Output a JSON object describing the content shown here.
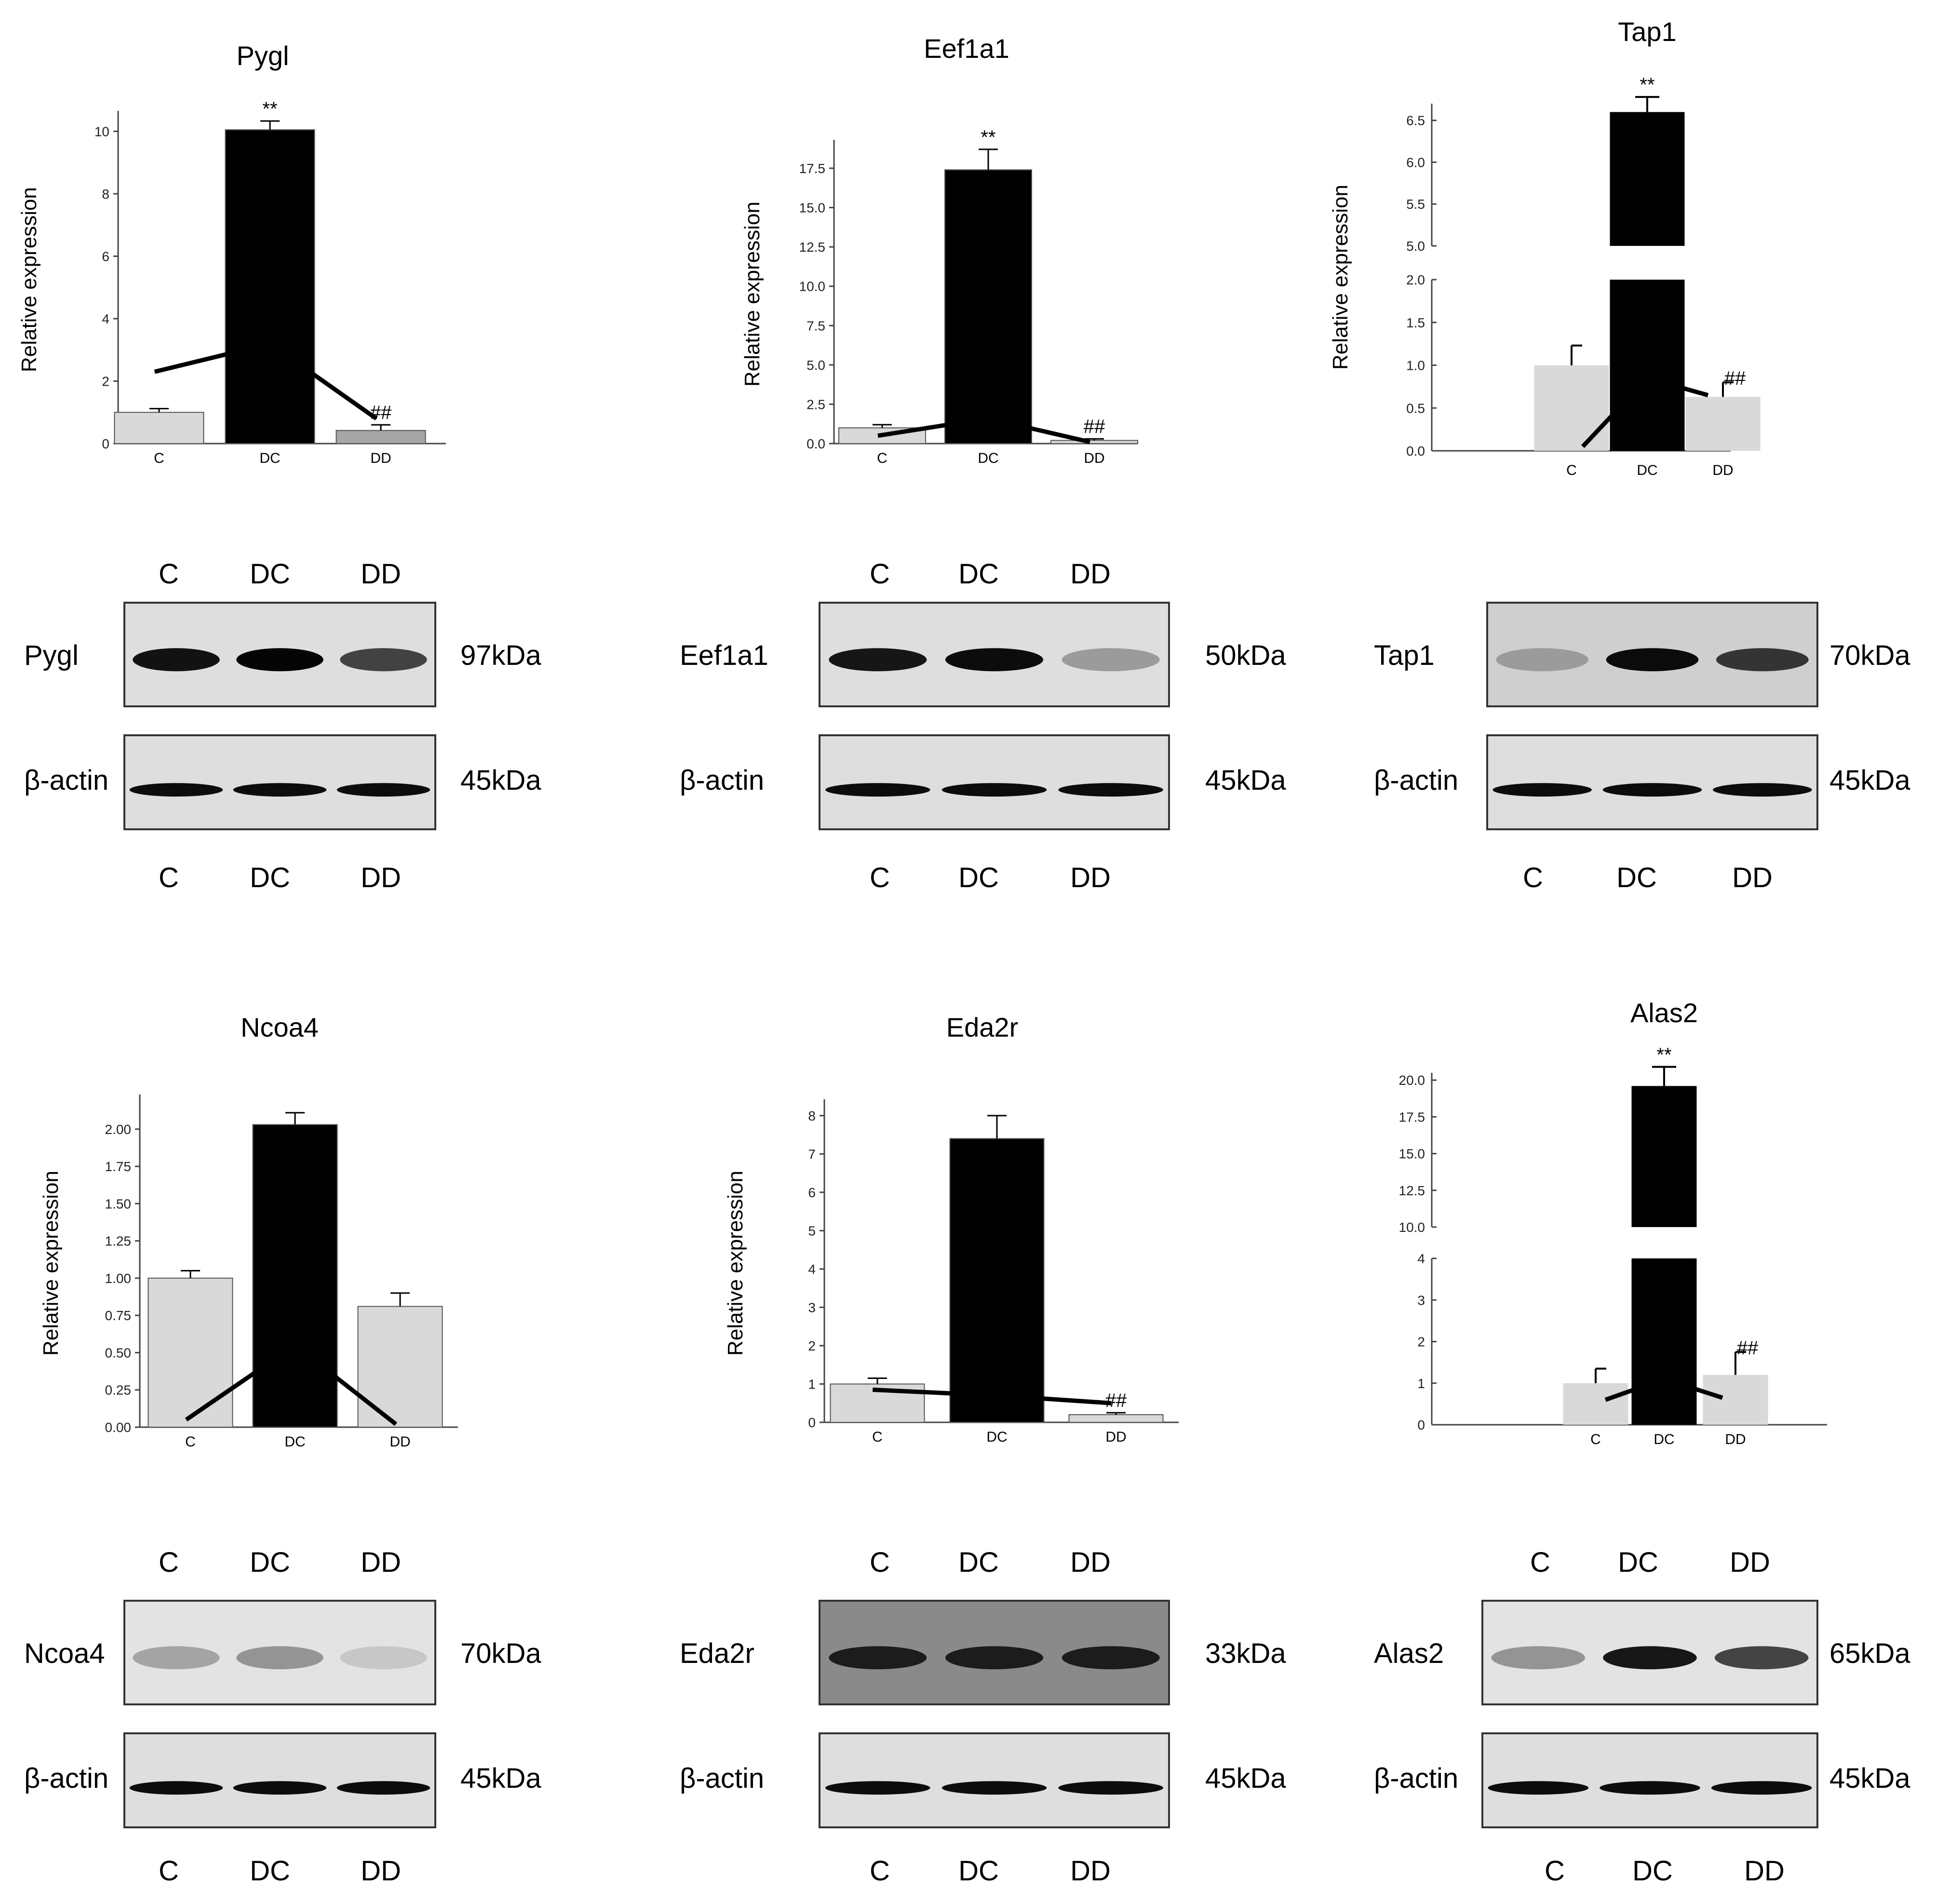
{
  "chart_data": [
    {
      "type": "bar",
      "title": "Pygl",
      "ylabel": "Relative expression",
      "categories": [
        "C",
        "DC",
        "DD"
      ],
      "values": [
        1.0,
        10.05,
        0.42
      ],
      "errors": [
        0.12,
        0.28,
        0.18
      ],
      "colors": [
        "#d9d9d9",
        "#000000",
        "#a6a6a6"
      ],
      "ylim": [
        0,
        10.5
      ],
      "yticks": [
        0,
        2,
        4,
        6,
        8,
        10
      ],
      "annotations": [
        "",
        "**",
        "##"
      ],
      "trend": [
        2.3,
        3.2,
        0.8
      ]
    },
    {
      "type": "bar",
      "title": "Eef1a1",
      "ylabel": "Relative expression",
      "categories": [
        "C",
        "DC",
        "DD"
      ],
      "values": [
        1.0,
        17.4,
        0.2
      ],
      "errors": [
        0.2,
        1.3,
        0.1
      ],
      "colors": [
        "#d9d9d9",
        "#000000",
        "#d9d9d9"
      ],
      "ylim": [
        0,
        19
      ],
      "yticks": [
        "0.0",
        "2.5",
        "5.0",
        "7.5",
        "10.0",
        "12.5",
        "15.0",
        "17.5"
      ],
      "annotations": [
        "",
        "**",
        "##"
      ],
      "trend": [
        0.5,
        1.6,
        0.1
      ]
    },
    {
      "type": "bar",
      "title": "Tap1",
      "ylabel": "Relative expression",
      "broken_axis": true,
      "categories": [
        "C",
        "DC",
        "DD"
      ],
      "values": [
        1.0,
        6.6,
        0.63
      ],
      "errors": [
        0.23,
        0.18,
        0.17
      ],
      "colors": [
        "#d9d9d9",
        "#000000",
        "#d9d9d9"
      ],
      "ylim_lower": [
        0,
        2
      ],
      "ylim_upper": [
        5,
        6.7
      ],
      "yticks_lower": [
        "0.0",
        "0.5",
        "1.0",
        "1.5",
        "2.0"
      ],
      "yticks_upper": [
        "5.0",
        "5.5",
        "6.0",
        "6.5"
      ],
      "annotations": [
        "",
        "**",
        "##"
      ],
      "trend": [
        0.05,
        0.85,
        0.65
      ]
    },
    {
      "type": "bar",
      "title": "Ncoa4",
      "ylabel": "Relative expression",
      "categories": [
        "C",
        "DC",
        "DD"
      ],
      "values": [
        1.0,
        2.03,
        0.81
      ],
      "errors": [
        0.05,
        0.08,
        0.09
      ],
      "colors": [
        "#d9d9d9",
        "#000000",
        "#d9d9d9"
      ],
      "ylim": [
        0,
        2.2
      ],
      "yticks": [
        "0.00",
        "0.25",
        "0.50",
        "0.75",
        "1.00",
        "1.25",
        "1.50",
        "1.75",
        "2.00"
      ],
      "annotations": [
        "",
        "",
        ""
      ],
      "trend": [
        0.05,
        0.55,
        0.02
      ]
    },
    {
      "type": "bar",
      "title": "Eda2r",
      "ylabel": "Relative expression",
      "categories": [
        "C",
        "DC",
        "DD"
      ],
      "values": [
        1.0,
        7.4,
        0.2
      ],
      "errors": [
        0.15,
        0.6,
        0.05
      ],
      "colors": [
        "#d9d9d9",
        "#000000",
        "#d9d9d9"
      ],
      "ylim": [
        0,
        8.3
      ],
      "yticks": [
        0,
        1,
        2,
        3,
        4,
        5,
        6,
        7,
        8
      ],
      "annotations": [
        "",
        "",
        "##"
      ],
      "trend": [
        0.85,
        0.7,
        0.5
      ]
    },
    {
      "type": "bar",
      "title": "Alas2",
      "ylabel": "",
      "broken_axis": true,
      "categories": [
        "C",
        "DC",
        "DD"
      ],
      "values": [
        1.0,
        19.6,
        1.2
      ],
      "errors": [
        0.35,
        1.3,
        0.55
      ],
      "colors": [
        "#d9d9d9",
        "#000000",
        "#d9d9d9"
      ],
      "ylim_lower": [
        0,
        4
      ],
      "ylim_upper": [
        10,
        20.5
      ],
      "yticks_lower": [
        "0",
        "1",
        "2",
        "3",
        "4"
      ],
      "yticks_upper": [
        "10.0",
        "12.5",
        "15.0",
        "17.5",
        "20.0"
      ],
      "annotations": [
        "",
        "**",
        "##"
      ],
      "trend": [
        0.6,
        1.1,
        0.65
      ]
    }
  ],
  "blots": [
    {
      "lanes_top": [
        "C",
        "DC",
        "DD"
      ],
      "lanes_bottom": [
        "C",
        "DC",
        "DD"
      ],
      "protein": {
        "label": "Pygl",
        "size": "97kDa",
        "intensities": [
          0.92,
          0.98,
          0.7
        ],
        "bg": "#dedede"
      },
      "actin": {
        "label": "β-actin",
        "size": "45kDa",
        "intensities": [
          0.95,
          0.95,
          0.95
        ],
        "bg": "#dedede"
      }
    },
    {
      "lanes_top": [
        "C",
        "DC",
        "DD"
      ],
      "lanes_bottom": [
        "C",
        "DC",
        "DD"
      ],
      "protein": {
        "label": "Eef1a1",
        "size": "50kDa",
        "intensities": [
          0.9,
          0.95,
          0.3
        ],
        "bg": "#dedede"
      },
      "actin": {
        "label": "β-actin",
        "size": "45kDa",
        "intensities": [
          0.95,
          0.95,
          0.95
        ],
        "bg": "#dedede"
      }
    },
    {
      "lanes_top": [
        "C",
        "DC",
        "DD"
      ],
      "lanes_bottom": [
        "C",
        "DC",
        "DD"
      ],
      "protein": {
        "label": "Tap1",
        "size": "70kDa",
        "intensities": [
          0.25,
          0.95,
          0.75
        ],
        "bg": "#cfcfcf"
      },
      "actin": {
        "label": "β-actin",
        "size": "45kDa",
        "intensities": [
          0.95,
          0.95,
          0.95
        ],
        "bg": "#dedede"
      }
    },
    {
      "lanes_top": [
        "C",
        "DC",
        "DD"
      ],
      "lanes_bottom": [
        "C",
        "DC",
        "DD"
      ],
      "protein": {
        "label": "Ncoa4",
        "size": "70kDa",
        "intensities": [
          0.28,
          0.35,
          0.12
        ],
        "bg": "#e3e3e3"
      },
      "actin": {
        "label": "β-actin",
        "size": "45kDa",
        "intensities": [
          0.95,
          0.95,
          0.95
        ],
        "bg": "#dedede"
      }
    },
    {
      "lanes_top": [
        "C",
        "DC",
        "DD"
      ],
      "lanes_bottom": [
        "C",
        "DC",
        "DD"
      ],
      "protein": {
        "label": "Eda2r",
        "size": "33kDa",
        "intensities": [
          0.8,
          0.8,
          0.8
        ],
        "bg": "#8a8a8a"
      },
      "actin": {
        "label": "β-actin",
        "size": "45kDa",
        "intensities": [
          0.95,
          0.95,
          0.95
        ],
        "bg": "#dedede"
      }
    },
    {
      "lanes_top": [
        "C",
        "DC",
        "DD"
      ],
      "lanes_bottom": [
        "C",
        "DC",
        "DD"
      ],
      "protein": {
        "label": "Alas2",
        "size": "65kDa",
        "intensities": [
          0.35,
          0.9,
          0.7
        ],
        "bg": "#e3e3e3"
      },
      "actin": {
        "label": "β-actin",
        "size": "45kDa",
        "intensities": [
          0.95,
          0.95,
          0.95
        ],
        "bg": "#dedede"
      }
    }
  ]
}
